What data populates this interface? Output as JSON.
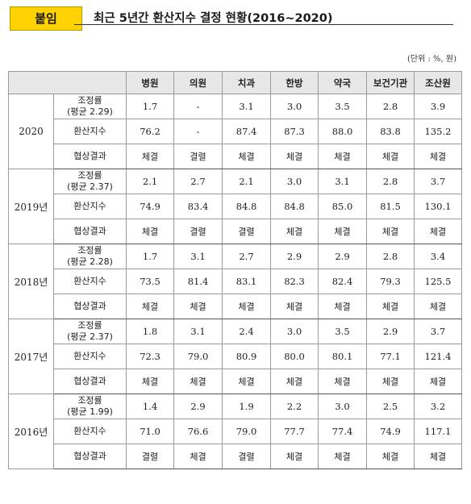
{
  "header": {
    "badge": "붙임",
    "title": "최근 5년간 환산지수 결정 현황(2016~2020)"
  },
  "unit_note": "(단위 : %, 원)",
  "table": {
    "columns": [
      "",
      "",
      "병원",
      "의원",
      "치과",
      "한방",
      "약국",
      "보건기관",
      "조산원"
    ],
    "row_labels": {
      "rate": "조정률",
      "index": "환산지수",
      "result": "협상결과"
    },
    "groups": [
      {
        "year": "2020",
        "avg": "(평균 2.29)",
        "rate": [
          "1.7",
          "-",
          "3.1",
          "3.0",
          "3.5",
          "2.8",
          "3.9"
        ],
        "index": [
          "76.2",
          "-",
          "87.4",
          "87.3",
          "88.0",
          "83.8",
          "135.2"
        ],
        "result": [
          "체결",
          "결렬",
          "체결",
          "체결",
          "체결",
          "체결",
          "체결"
        ]
      },
      {
        "year": "2019년",
        "avg": "(평균 2.37)",
        "rate": [
          "2.1",
          "2.7",
          "2.1",
          "3.0",
          "3.1",
          "2.8",
          "3.7"
        ],
        "index": [
          "74.9",
          "83.4",
          "84.8",
          "84.8",
          "85.0",
          "81.5",
          "130.1"
        ],
        "result": [
          "체결",
          "결렬",
          "결렬",
          "체결",
          "체결",
          "체결",
          "체결"
        ]
      },
      {
        "year": "2018년",
        "avg": "(평균 2.28)",
        "rate": [
          "1.7",
          "3.1",
          "2.7",
          "2.9",
          "2.9",
          "2.8",
          "3.4"
        ],
        "index": [
          "73.5",
          "81.4",
          "83.1",
          "82.3",
          "82.4",
          "79.3",
          "125.5"
        ],
        "result": [
          "체결",
          "체결",
          "체결",
          "체결",
          "체결",
          "체결",
          "체결"
        ]
      },
      {
        "year": "2017년",
        "avg": "(평균 2.37)",
        "rate": [
          "1.8",
          "3.1",
          "2.4",
          "3.0",
          "3.5",
          "2.9",
          "3.7"
        ],
        "index": [
          "72.3",
          "79.0",
          "80.9",
          "80.0",
          "80.1",
          "77.1",
          "121.4"
        ],
        "result": [
          "체결",
          "체결",
          "체결",
          "체결",
          "체결",
          "체결",
          "체결"
        ]
      },
      {
        "year": "2016년",
        "avg": "(평균 1.99)",
        "rate": [
          "1.4",
          "2.9",
          "1.9",
          "2.2",
          "3.0",
          "2.5",
          "3.2"
        ],
        "index": [
          "71.0",
          "76.6",
          "79.0",
          "77.7",
          "77.4",
          "74.9",
          "117.1"
        ],
        "result": [
          "결렬",
          "체결",
          "결렬",
          "체결",
          "체결",
          "체결",
          "체결"
        ]
      }
    ]
  }
}
